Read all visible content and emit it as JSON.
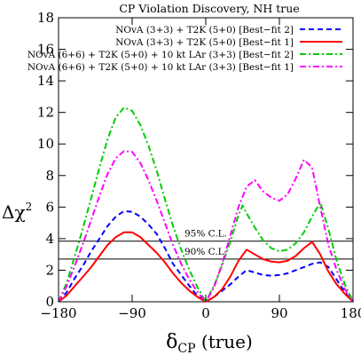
{
  "chart_data": {
    "type": "line",
    "title": "CP Violation Discovery, NH true",
    "xlabel_main": "δ",
    "xlabel_sub": "CP",
    "xlabel_suffix": " (true)",
    "ylabel_main": "Δχ",
    "ylabel_sup": "2",
    "xlim": [
      -180,
      180
    ],
    "ylim": [
      0,
      18
    ],
    "xticks": [
      -180,
      -90,
      0,
      90,
      180
    ],
    "xtick_labels": [
      "−180",
      "−90",
      "0",
      "90",
      "180"
    ],
    "yticks": [
      0,
      2,
      4,
      6,
      8,
      10,
      12,
      14,
      16,
      18
    ],
    "ytick_labels": [
      "0",
      "2",
      "4",
      "6",
      "8",
      "10",
      "12",
      "14",
      "16",
      "18"
    ],
    "legend_position": "top-right",
    "reference_lines": [
      {
        "y": 3.84,
        "label": "95% C.L."
      },
      {
        "y": 2.71,
        "label": "90% C.L."
      }
    ],
    "series": [
      {
        "name": "NOvA (3+3) + T2K (5+0) [Best−fit 2]",
        "color": "#0000ff",
        "dash": "6,4",
        "x": [
          -180,
          -170,
          -160,
          -150,
          -140,
          -130,
          -120,
          -110,
          -100,
          -90,
          -80,
          -70,
          -60,
          -50,
          -40,
          -30,
          -20,
          -10,
          0,
          10,
          20,
          30,
          40,
          50,
          60,
          70,
          80,
          90,
          100,
          110,
          120,
          130,
          140,
          150,
          160,
          170,
          180
        ],
        "y": [
          0,
          0.6,
          1.5,
          2.3,
          3.2,
          4.0,
          4.8,
          5.4,
          5.75,
          5.7,
          5.4,
          4.9,
          4.3,
          3.4,
          2.4,
          1.7,
          1.0,
          0.35,
          0,
          0.3,
          0.7,
          1.1,
          1.6,
          2.0,
          1.85,
          1.7,
          1.65,
          1.7,
          1.8,
          2.0,
          2.2,
          2.4,
          2.5,
          2.2,
          1.4,
          0.6,
          0
        ]
      },
      {
        "name": "NOvA (3+3) + T2K (5+0) [Best−fit 1]",
        "color": "#ff0000",
        "dash": "",
        "x": [
          -180,
          -170,
          -160,
          -150,
          -140,
          -130,
          -120,
          -110,
          -100,
          -90,
          -80,
          -70,
          -60,
          -50,
          -40,
          -30,
          -20,
          -10,
          0,
          10,
          20,
          30,
          40,
          50,
          60,
          70,
          80,
          90,
          100,
          110,
          120,
          130,
          140,
          150,
          160,
          170,
          180
        ],
        "y": [
          0,
          0.4,
          1.0,
          1.6,
          2.2,
          2.9,
          3.6,
          4.1,
          4.4,
          4.4,
          4.1,
          3.6,
          3.1,
          2.5,
          1.8,
          1.2,
          0.7,
          0.3,
          0,
          0.3,
          0.8,
          1.6,
          2.6,
          3.3,
          3.0,
          2.7,
          2.55,
          2.5,
          2.6,
          2.9,
          3.4,
          3.8,
          3.0,
          1.9,
          1.1,
          0.5,
          0
        ]
      },
      {
        "name": "NOvA (6+6) + T2K (5+0) + 10 kt LAr (3+3) [Best−fit 2]",
        "color": "#00cc00",
        "dash": "7,3,2,3",
        "x": [
          -180,
          -170,
          -160,
          -150,
          -140,
          -130,
          -120,
          -110,
          -100,
          -90,
          -80,
          -70,
          -60,
          -50,
          -40,
          -30,
          -20,
          -10,
          0,
          10,
          20,
          30,
          40,
          45,
          50,
          60,
          70,
          80,
          90,
          100,
          110,
          120,
          130,
          140,
          150,
          160,
          170,
          180
        ],
        "y": [
          0,
          1.2,
          2.9,
          4.7,
          6.6,
          8.5,
          10.3,
          11.7,
          12.3,
          12.1,
          11.2,
          9.9,
          8.3,
          6.5,
          4.8,
          3.3,
          2.0,
          0.9,
          0,
          1.0,
          2.3,
          3.8,
          5.5,
          6.1,
          5.6,
          4.7,
          3.9,
          3.4,
          3.2,
          3.3,
          3.7,
          4.4,
          5.4,
          6.3,
          4.6,
          2.6,
          1.1,
          0
        ]
      },
      {
        "name": "NOvA (6+6) + T2K (5+0) + 10 kt LAr (3+3) [Best−fit 1]",
        "color": "#ff00ff",
        "dash": "7,3,2,3",
        "x": [
          -180,
          -170,
          -160,
          -150,
          -140,
          -130,
          -120,
          -110,
          -100,
          -90,
          -80,
          -70,
          -60,
          -50,
          -40,
          -30,
          -20,
          -10,
          0,
          10,
          20,
          30,
          40,
          50,
          60,
          70,
          80,
          90,
          100,
          110,
          120,
          130,
          140,
          150,
          160,
          170,
          180
        ],
        "y": [
          0,
          1.0,
          2.3,
          3.7,
          5.2,
          6.7,
          8.1,
          9.1,
          9.55,
          9.5,
          8.8,
          7.7,
          6.4,
          5.0,
          3.6,
          2.4,
          1.4,
          0.6,
          0,
          0.9,
          2.4,
          4.2,
          6.0,
          7.3,
          7.7,
          7.0,
          6.6,
          6.4,
          6.8,
          7.8,
          9.0,
          8.5,
          6.0,
          3.6,
          2.0,
          0.8,
          0
        ]
      }
    ]
  }
}
